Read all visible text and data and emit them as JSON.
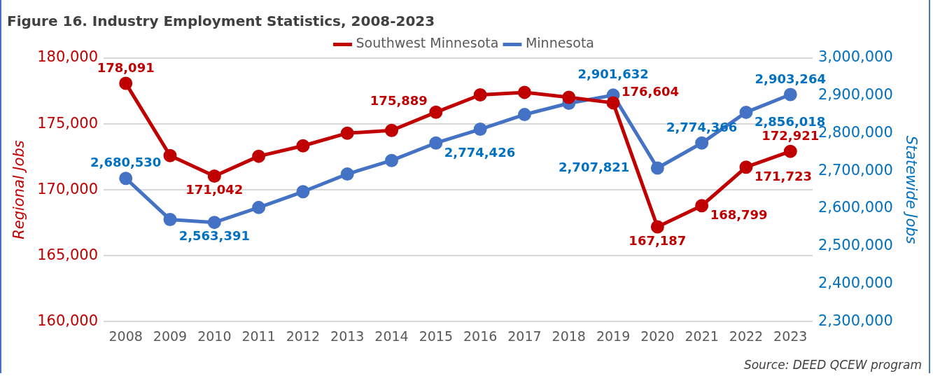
{
  "chart_data": {
    "type": "line",
    "title": "Figure 16. Industry Employment Statistics, 2008-2023",
    "ylabel": "Regional Jobs",
    "y2label": "Statewide Jobs",
    "categories": [
      "2008",
      "2009",
      "2010",
      "2011",
      "2012",
      "2013",
      "2014",
      "2015",
      "2016",
      "2017",
      "2018",
      "2019",
      "2020",
      "2021",
      "2022",
      "2023"
    ],
    "series": [
      {
        "name": "Southwest Minnesota",
        "color": "#c00000",
        "axis": "y",
        "values": [
          178091,
          172600,
          171042,
          172550,
          173340,
          174300,
          174510,
          175889,
          177210,
          177400,
          177020,
          176604,
          167187,
          168799,
          171723,
          172921
        ],
        "value_labels": [
          "178,091",
          null,
          "171,042",
          null,
          null,
          null,
          null,
          "175,889",
          null,
          null,
          null,
          "176,604",
          "167,187",
          "168,799",
          "171,723",
          "172,921"
        ]
      },
      {
        "name": "Minnesota",
        "color": "#4472c4",
        "axis": "y2",
        "values": [
          2680530,
          2571000,
          2563391,
          2603000,
          2645000,
          2692000,
          2728000,
          2774426,
          2811000,
          2850000,
          2880000,
          2901632,
          2707821,
          2774366,
          2856018,
          2903264
        ],
        "value_labels": [
          "2,680,530",
          null,
          "2,563,391",
          null,
          null,
          null,
          null,
          "2,774,426",
          null,
          null,
          null,
          "2,901,632",
          "2,707,821",
          "2,774,366",
          "2,856,018",
          "2,903,264"
        ]
      }
    ],
    "ylim": [
      160000,
      180000
    ],
    "yticks": [
      {
        "value": 160000,
        "label": "160,000"
      },
      {
        "value": 165000,
        "label": "165,000"
      },
      {
        "value": 170000,
        "label": "170,000"
      },
      {
        "value": 175000,
        "label": "175,000"
      },
      {
        "value": 180000,
        "label": "180,000"
      }
    ],
    "y2lim": [
      2300000,
      3000000
    ],
    "y2ticks": [
      {
        "value": 2300000,
        "label": "2,300,000"
      },
      {
        "value": 2400000,
        "label": "2,400,000"
      },
      {
        "value": 2500000,
        "label": "2,500,000"
      },
      {
        "value": 2600000,
        "label": "2,600,000"
      },
      {
        "value": 2700000,
        "label": "2,700,000"
      },
      {
        "value": 2800000,
        "label": "2,800,000"
      },
      {
        "value": 2900000,
        "label": "2,900,000"
      },
      {
        "value": 3000000,
        "label": "3,000,000"
      }
    ],
    "grid": "y",
    "legend": "top",
    "marker": "circle",
    "line_style": "solid",
    "annotations": [
      "Source: DEED QCEW program"
    ]
  }
}
